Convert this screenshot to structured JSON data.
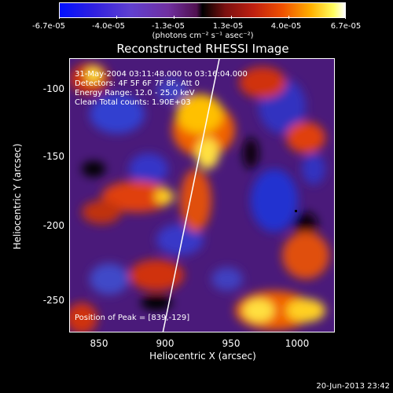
{
  "colorbar": {
    "ticks": [
      "-6.7e-05",
      "-4.0e-05",
      "-1.3e-05",
      "1.3e-05",
      "4.0e-05",
      "6.7e-05"
    ],
    "units": "(photons cm⁻² s⁻¹ asec⁻²)"
  },
  "title": "Reconstructed RHESSI Image",
  "info": {
    "time": "31-May-2004 03:11:48.000 to 03:16:04.000",
    "detectors": "Detectors: 4F 5F 6F 7F 8F, Att 0",
    "energy": "Energy Range: 12.0 - 25.0 keV",
    "clean": "Clean     Total counts: 1.90E+03",
    "peak": "Position of Peak = [839,-129]"
  },
  "axes": {
    "x_ticks": [
      "850",
      "900",
      "950",
      "1000"
    ],
    "y_ticks": [
      "-100",
      "-150",
      "-200",
      "-250"
    ],
    "xlabel": "Heliocentric X (arcsec)",
    "ylabel": "Heliocentric Y (arcsec)"
  },
  "footer": "20-Jun-2013 23:42"
}
